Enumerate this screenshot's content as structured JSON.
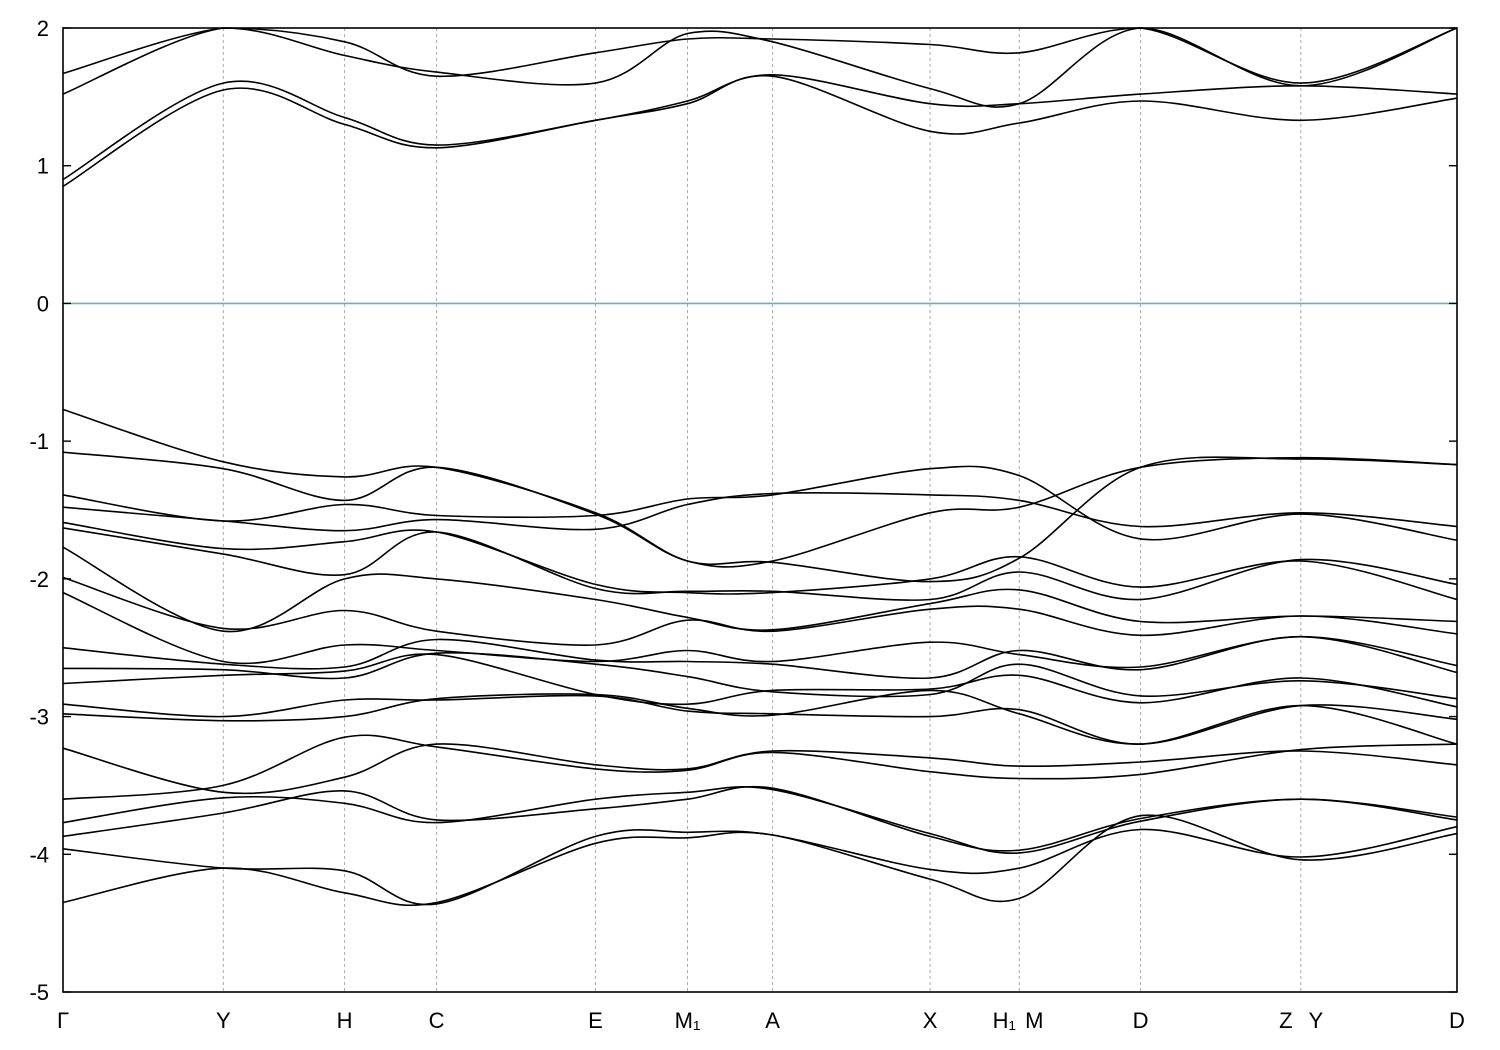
{
  "chart_data": {
    "type": "line",
    "title": "",
    "xlabel": "",
    "ylabel": "",
    "ylim": [
      -5,
      2
    ],
    "yticks": [
      2,
      1,
      0,
      -1,
      -2,
      -3,
      -4,
      -5
    ],
    "x_range": [
      0,
      1
    ],
    "fermi_level": 0,
    "fermi_color": "#5fb3c8",
    "line_color": "#000000",
    "grid": "dashed vertical lines at high-symmetry points",
    "legend": "none",
    "kpoints": [
      {
        "pos": 0.0,
        "label": "Γ"
      },
      {
        "pos": 0.115,
        "label": "Y"
      },
      {
        "pos": 0.202,
        "label": "H"
      },
      {
        "pos": 0.268,
        "label": "C"
      },
      {
        "pos": 0.382,
        "label": "E"
      },
      {
        "pos": 0.448,
        "label": "M₁"
      },
      {
        "pos": 0.509,
        "label": "A"
      },
      {
        "pos": 0.622,
        "label": "X"
      },
      {
        "pos": 0.686,
        "label": "H₁"
      },
      {
        "pos": 0.686,
        "label": "M"
      },
      {
        "pos": 0.773,
        "label": "D"
      },
      {
        "pos": 0.888,
        "label": "Z"
      },
      {
        "pos": 0.888,
        "label": "Y"
      },
      {
        "pos": 1.0,
        "label": "D"
      }
    ],
    "x_positions": [
      0.0,
      0.115,
      0.202,
      0.268,
      0.382,
      0.448,
      0.509,
      0.622,
      0.686,
      0.773,
      0.888,
      1.0
    ],
    "series": [
      {
        "values": [
          0.85,
          1.55,
          1.3,
          1.13,
          1.33,
          1.45,
          1.65,
          1.25,
          1.31,
          1.47,
          1.33,
          1.49
        ]
      },
      {
        "values": [
          0.9,
          1.6,
          1.35,
          1.15,
          1.33,
          1.47,
          1.66,
          1.45,
          1.45,
          1.52,
          1.58,
          1.52
        ]
      },
      {
        "values": [
          1.52,
          2.1,
          1.8,
          1.68,
          1.6,
          1.96,
          1.9,
          1.56,
          1.45,
          2.0,
          1.58,
          2.0
        ]
      },
      {
        "values": [
          1.67,
          2.2,
          1.9,
          1.65,
          1.82,
          1.92,
          1.92,
          1.88,
          1.82,
          2.1,
          1.6,
          2.0
        ]
      },
      {
        "values": [
          -0.77,
          -1.15,
          -1.26,
          -1.19,
          -1.52,
          -1.87,
          -1.88,
          -2.02,
          -1.85,
          -1.19,
          -1.13,
          -1.17
        ]
      },
      {
        "values": [
          -1.08,
          -1.2,
          -1.43,
          -1.19,
          -1.53,
          -1.87,
          -1.87,
          -1.52,
          -1.48,
          -1.19,
          -1.12,
          -1.17
        ]
      },
      {
        "values": [
          -1.39,
          -1.58,
          -1.46,
          -1.54,
          -1.54,
          -1.42,
          -1.39,
          -1.2,
          -1.25,
          -1.71,
          -1.53,
          -1.72
        ]
      },
      {
        "values": [
          -1.48,
          -1.58,
          -1.65,
          -1.57,
          -1.64,
          -1.46,
          -1.38,
          -1.39,
          -1.43,
          -1.62,
          -1.52,
          -1.62
        ]
      },
      {
        "values": [
          -1.59,
          -1.78,
          -1.73,
          -1.66,
          -2.04,
          -2.1,
          -2.1,
          -2.0,
          -1.84,
          -2.06,
          -1.87,
          -2.15
        ]
      },
      {
        "values": [
          -1.63,
          -1.82,
          -1.97,
          -1.66,
          -2.07,
          -2.09,
          -2.09,
          -2.15,
          -1.95,
          -2.15,
          -1.86,
          -2.04
        ]
      },
      {
        "values": [
          -1.77,
          -2.38,
          -2.0,
          -2.0,
          -2.15,
          -2.28,
          -2.37,
          -2.18,
          -2.08,
          -2.31,
          -2.27,
          -2.31
        ]
      },
      {
        "values": [
          -1.99,
          -2.36,
          -2.23,
          -2.38,
          -2.48,
          -2.3,
          -2.38,
          -2.22,
          -2.22,
          -2.41,
          -2.27,
          -2.4
        ]
      },
      {
        "values": [
          -2.1,
          -2.6,
          -2.48,
          -2.52,
          -2.6,
          -2.52,
          -2.6,
          -2.46,
          -2.55,
          -2.64,
          -2.42,
          -2.63
        ]
      },
      {
        "values": [
          -2.5,
          -2.62,
          -2.64,
          -2.44,
          -2.59,
          -2.6,
          -2.62,
          -2.72,
          -2.52,
          -2.66,
          -2.42,
          -2.68
        ]
      },
      {
        "values": [
          -2.65,
          -2.66,
          -2.72,
          -2.54,
          -2.62,
          -2.71,
          -2.82,
          -2.84,
          -2.62,
          -2.85,
          -2.74,
          -2.87
        ]
      },
      {
        "values": [
          -2.76,
          -2.7,
          -2.67,
          -2.55,
          -2.84,
          -2.91,
          -2.81,
          -2.8,
          -2.7,
          -2.9,
          -2.72,
          -2.93
        ]
      },
      {
        "values": [
          -2.91,
          -3.0,
          -2.88,
          -2.88,
          -2.85,
          -2.96,
          -2.98,
          -3.0,
          -2.95,
          -3.2,
          -2.92,
          -3.02
        ]
      },
      {
        "values": [
          -2.98,
          -3.03,
          -3.0,
          -2.87,
          -2.84,
          -2.94,
          -2.99,
          -2.81,
          -2.98,
          -3.2,
          -2.92,
          -3.2
        ]
      },
      {
        "values": [
          -3.23,
          -3.55,
          -3.44,
          -3.2,
          -3.35,
          -3.38,
          -3.25,
          -3.3,
          -3.36,
          -3.33,
          -3.25,
          -3.35
        ]
      },
      {
        "values": [
          -3.6,
          -3.5,
          -3.15,
          -3.22,
          -3.38,
          -3.39,
          -3.26,
          -3.4,
          -3.45,
          -3.42,
          -3.24,
          -3.2
        ]
      },
      {
        "values": [
          -3.77,
          -3.59,
          -3.63,
          -3.77,
          -3.6,
          -3.55,
          -3.53,
          -3.85,
          -3.99,
          -3.76,
          -3.6,
          -3.75
        ]
      },
      {
        "values": [
          -3.87,
          -3.7,
          -3.54,
          -3.75,
          -3.67,
          -3.6,
          -3.52,
          -3.87,
          -3.97,
          -3.74,
          -3.6,
          -3.73
        ]
      },
      {
        "values": [
          -3.96,
          -4.1,
          -4.12,
          -4.36,
          -3.87,
          -3.84,
          -3.86,
          -4.11,
          -4.1,
          -3.82,
          -4.02,
          -3.8
        ]
      },
      {
        "values": [
          -4.35,
          -4.1,
          -4.28,
          -4.35,
          -3.92,
          -3.88,
          -3.86,
          -4.18,
          -4.32,
          -3.72,
          -4.04,
          -3.85
        ]
      }
    ]
  }
}
